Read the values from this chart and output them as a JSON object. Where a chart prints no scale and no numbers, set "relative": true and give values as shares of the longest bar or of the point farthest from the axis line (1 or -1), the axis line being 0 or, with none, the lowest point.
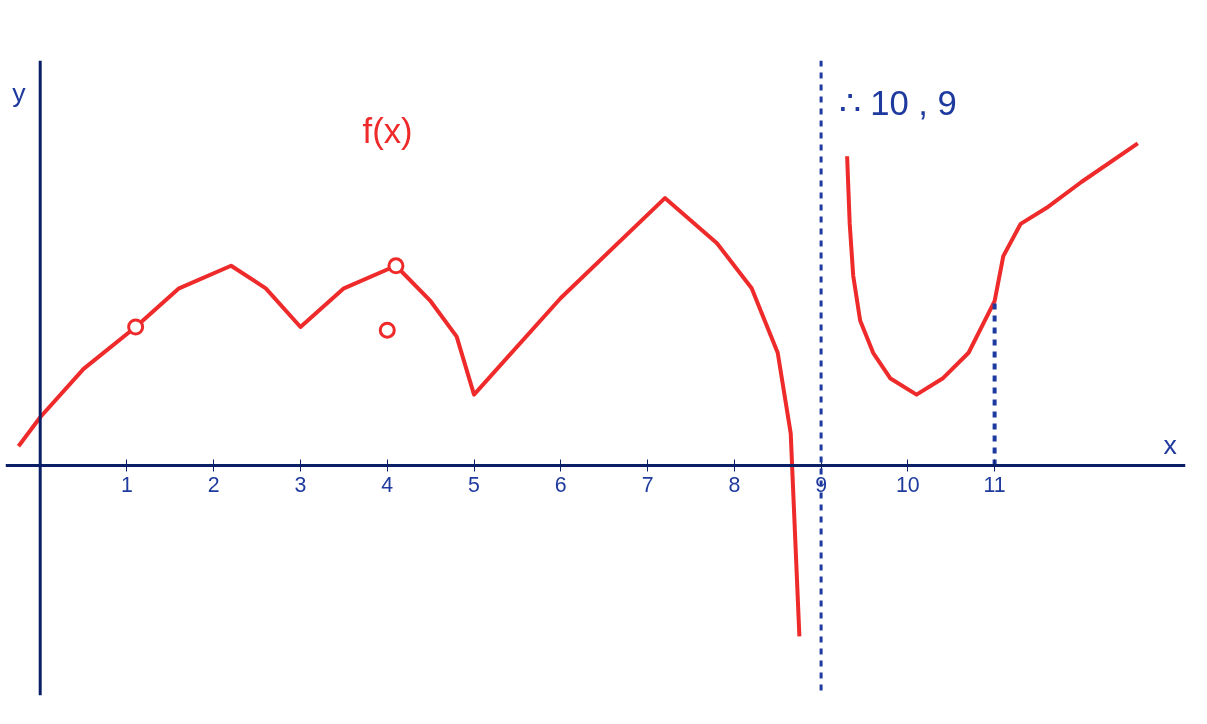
{
  "chart_data": {
    "type": "line",
    "relative": true,
    "xlabel": "x",
    "ylabel": "y",
    "xlim": [
      -0.4,
      13.2
    ],
    "xticks": [
      1,
      2,
      3,
      4,
      5,
      6,
      7,
      8,
      9,
      10,
      11
    ],
    "line_style": "solid",
    "annotations": [
      "f(x)",
      "∴ 10 , 9"
    ],
    "ref_lines": [
      {
        "axis": "x",
        "value": 0,
        "color": "#0b1f66",
        "line_style": "solid"
      },
      {
        "axis": "x",
        "value": 9,
        "color": "#1f3a9e",
        "line_style": "dashed"
      }
    ],
    "series": [
      {
        "color": "#ee2a2a",
        "x": [
          -0.25,
          0,
          0.5,
          1.1,
          1.6,
          2.2,
          2.6,
          3,
          3.5,
          4.1,
          4.5,
          4.8,
          5,
          6,
          7.2,
          7.8,
          8.2,
          8.5,
          8.65,
          8.75
        ],
        "values": [
          0.06,
          0.15,
          0.3,
          0.43,
          0.55,
          0.62,
          0.55,
          0.43,
          0.55,
          0.62,
          0.51,
          0.4,
          0.22,
          0.52,
          0.83,
          0.69,
          0.55,
          0.35,
          0.1,
          -0.53
        ]
      },
      {
        "color": "#ee2a2a",
        "x": [
          9.3,
          9.33,
          9.37,
          9.45,
          9.6,
          9.8,
          10.1,
          10.4,
          10.7,
          11,
          11.1,
          11.3,
          11.6,
          12,
          12.65
        ],
        "values": [
          0.96,
          0.75,
          0.59,
          0.45,
          0.35,
          0.27,
          0.22,
          0.27,
          0.35,
          0.51,
          0.65,
          0.75,
          0.8,
          0.88,
          1.0
        ]
      },
      {
        "type": "scatter",
        "marker": "circle",
        "color": "#ee2a2a",
        "x": [
          1.1,
          4.1,
          4
        ],
        "values": [
          0.43,
          0.62,
          0.42
        ]
      },
      {
        "color": "#1f3a9e",
        "line_style": "dashed",
        "x": [
          11,
          11
        ],
        "values": [
          0,
          0.51
        ]
      }
    ]
  }
}
